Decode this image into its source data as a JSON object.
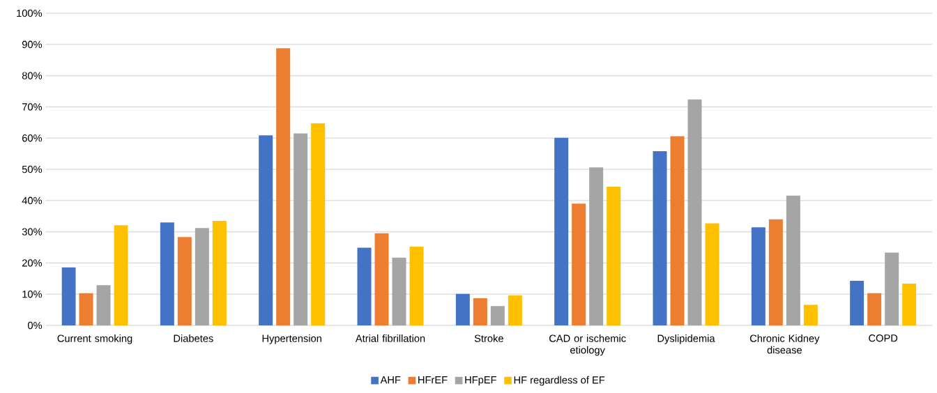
{
  "chart_data": {
    "type": "bar",
    "categories": [
      "Current smoking",
      "Diabetes",
      "Hypertension",
      "Atrial fibrillation",
      "Stroke",
      "CAD or ischemic etiology",
      "Dyslipidemia",
      "Chronic Kidney disease",
      "COPD"
    ],
    "series": [
      {
        "name": "AHF",
        "color": "#4472c4",
        "values": [
          18.6,
          33.0,
          60.9,
          24.9,
          10.1,
          60.1,
          55.8,
          31.4,
          14.3
        ]
      },
      {
        "name": "HFrEF",
        "color": "#ed7d31",
        "values": [
          10.3,
          28.3,
          88.8,
          29.5,
          8.7,
          39.0,
          60.6,
          34.0,
          10.3
        ]
      },
      {
        "name": "HFpEF",
        "color": "#a5a5a5",
        "values": [
          12.9,
          31.2,
          61.5,
          21.7,
          6.2,
          50.6,
          72.4,
          41.6,
          23.3
        ]
      },
      {
        "name": "HF regardless of EF",
        "color": "#ffc000",
        "values": [
          32.1,
          33.5,
          64.8,
          25.2,
          9.6,
          44.4,
          32.7,
          6.6,
          13.4
        ]
      }
    ],
    "ylim": [
      0,
      100
    ],
    "yticks": [
      {
        "value": 0,
        "label": "0%"
      },
      {
        "value": 10,
        "label": "10%"
      },
      {
        "value": 20,
        "label": "20%"
      },
      {
        "value": 30,
        "label": "30%"
      },
      {
        "value": 40,
        "label": "40%"
      },
      {
        "value": 50,
        "label": "50%"
      },
      {
        "value": 60,
        "label": "60%"
      },
      {
        "value": 70,
        "label": "70%"
      },
      {
        "value": 80,
        "label": "80%"
      },
      {
        "value": 90,
        "label": "90%"
      },
      {
        "value": 100,
        "label": "100%"
      }
    ],
    "grid": "y",
    "legend": "bottom"
  }
}
